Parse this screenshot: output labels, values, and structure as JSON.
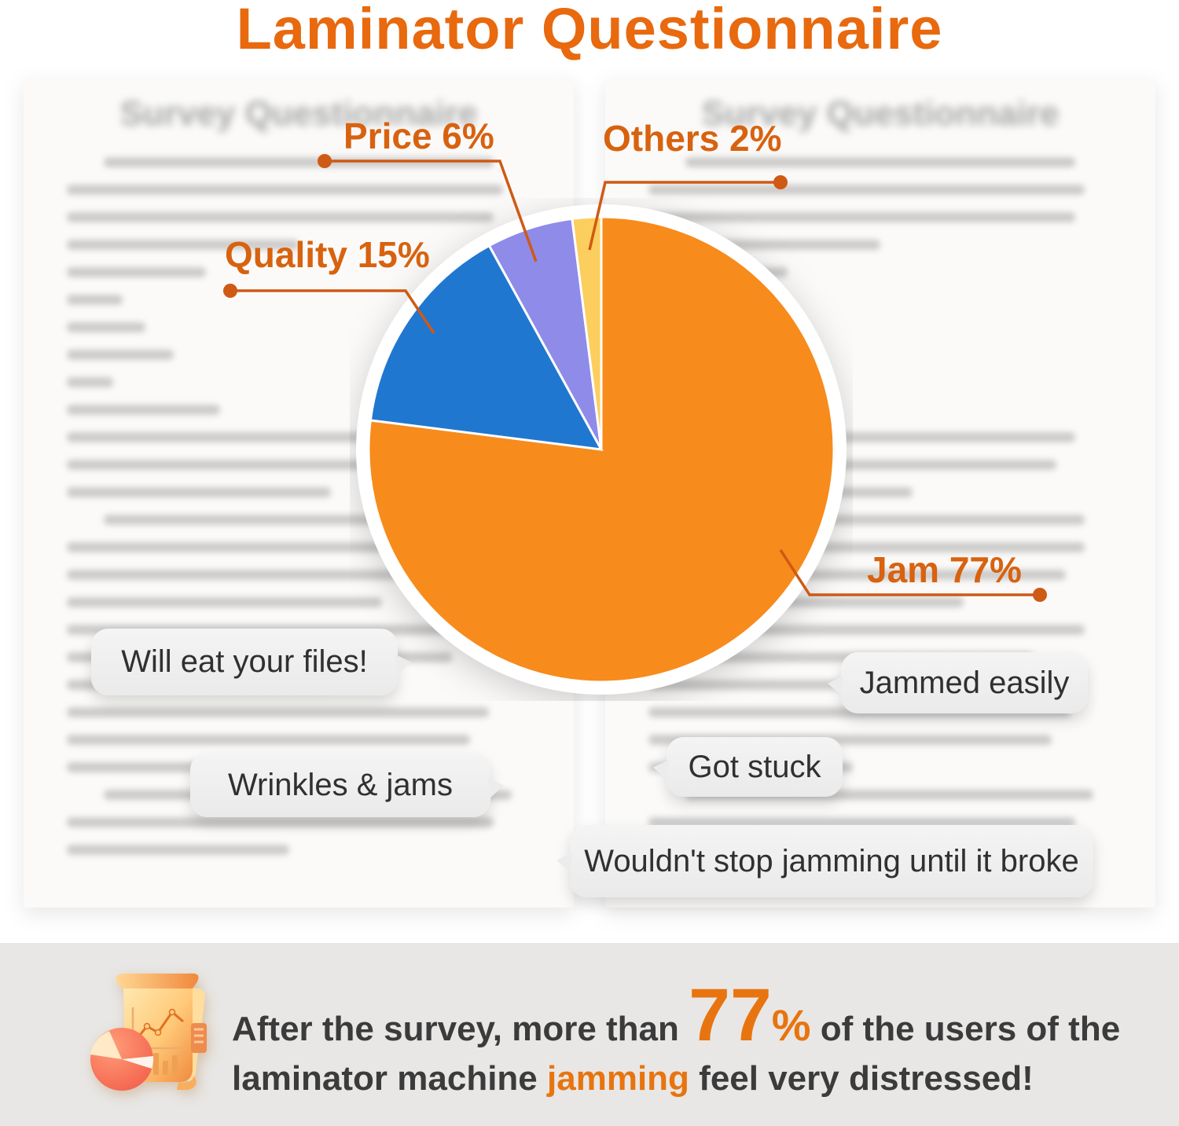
{
  "title": "Laminator Questionnaire",
  "background": {
    "left_page_title": "Survey Questionnaire",
    "right_page_title": "Survey Questionnaire"
  },
  "chart_data": {
    "type": "pie",
    "title": "Laminator Questionnaire",
    "categories": [
      "Jam",
      "Quality",
      "Price",
      "Others"
    ],
    "values": [
      77,
      15,
      6,
      2
    ],
    "unit": "%",
    "colors": [
      "#F78B1C",
      "#2077D0",
      "#8E8BE9",
      "#FCCE5E"
    ],
    "slice_labels": [
      "Jam 77%",
      "Quality 15%",
      "Price 6%",
      "Others 2%"
    ],
    "start_angle": "12 o'clock",
    "direction": "clockwise",
    "label_color": "#D8620F",
    "legend_position": "callout-labels-with-leader-lines"
  },
  "quotes": [
    {
      "text": "Will eat your files!",
      "tail": "right"
    },
    {
      "text": "Wrinkles & jams",
      "tail": "right"
    },
    {
      "text": "Jammed easily",
      "tail": "left"
    },
    {
      "text": "Got stuck",
      "tail": "left"
    },
    {
      "text": "Wouldn't stop jamming until it broke",
      "tail": "left"
    }
  ],
  "footer": {
    "line1_before": "After the survey, more than ",
    "highlight_number": "77",
    "highlight_percent": "%",
    "line1_after": " of the users of the",
    "line2_before": "laminator machine ",
    "line2_highlight": "jamming",
    "line2_after": " feel very distressed!"
  },
  "colors": {
    "title_orange": "#E8690E",
    "callout_orange": "#D8620F",
    "leader_line_orange": "#CE5A15",
    "pie_jam": "#F78B1C",
    "pie_quality": "#2077D0",
    "pie_price": "#8E8BE9",
    "pie_others": "#FCCE5E",
    "bubble_bg": "#EFEFEF",
    "bubble_text": "#303030",
    "footer_bg": "#E8E7E5",
    "footer_text": "#3B3B3B",
    "footer_highlight": "#E8740F",
    "page_bg": "#FBFAF9",
    "page_heading_gray": "#A9A9A9"
  }
}
